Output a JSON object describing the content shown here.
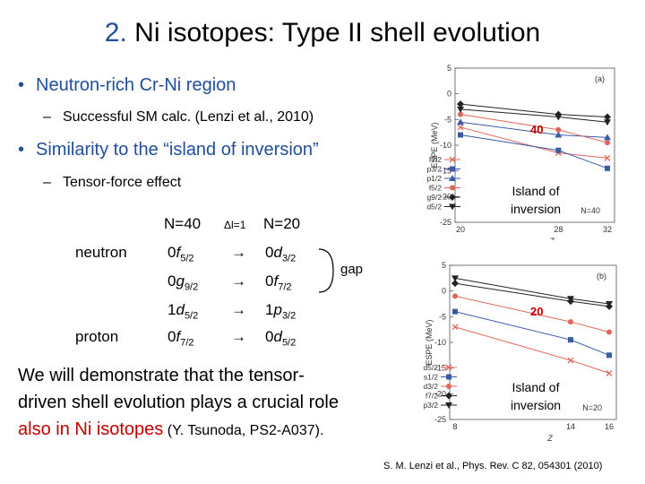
{
  "title": {
    "number": "2.",
    "text": " Ni isotopes: Type II shell evolution"
  },
  "bullets": [
    {
      "text": "Neutron-rich Cr-Ni region",
      "sub": "Successful SM calc. (Lenzi et al., 2010)"
    },
    {
      "text": "Similarity to the “island of inversion”",
      "sub": "Tensor-force effect"
    }
  ],
  "table": {
    "header_n40": "N=40",
    "header_dl": "Δl=1",
    "header_n20": "N=20",
    "row_neutron": "neutron",
    "row_proton": "proton",
    "arrow": "→",
    "gap": "gap",
    "left": [
      {
        "n": "0",
        "l": "f",
        "j": "5/2"
      },
      {
        "n": "0",
        "l": "g",
        "j": "9/2"
      },
      {
        "n": "1",
        "l": "d",
        "j": "5/2"
      },
      {
        "n": "0",
        "l": "f",
        "j": "7/2"
      }
    ],
    "right": [
      {
        "n": "0",
        "l": "d",
        "j": "3/2"
      },
      {
        "n": "0",
        "l": "f",
        "j": "7/2"
      },
      {
        "n": "1",
        "l": "p",
        "j": "3/2"
      },
      {
        "n": "0",
        "l": "d",
        "j": "5/2"
      }
    ]
  },
  "conclusion": {
    "line1": "We will demonstrate that the tensor-",
    "line2": "driven shell evolution plays a crucial role",
    "red": "also in Ni isotopes",
    "cite": " (Y. Tsunoda, PS2-A037)."
  },
  "annotations": {
    "top_magic": "40",
    "bottom_magic": "20",
    "island_line1": "Island of",
    "island_line2": "inversion"
  },
  "reference": "S. M. Lenzi et al., Phys. Rev. C 82, 054301 (2010)",
  "colors": {
    "title_blue": "#1f4e9a",
    "accent_red": "#c00000"
  },
  "chart_data": [
    {
      "type": "line",
      "panel": "(a)",
      "ylabel": "ESPE (MeV)",
      "xlabel": "Z",
      "xticks": [
        "20",
        "28",
        "32"
      ],
      "yticks": [
        "5",
        "0",
        "-5",
        "-10",
        "-15",
        "-20",
        "-25"
      ],
      "ylim": [
        -25,
        5
      ],
      "x": [
        20,
        28,
        32
      ],
      "inset_label": "N=40",
      "legend": [
        "f7/2",
        "p3/2",
        "p1/2",
        "f5/2",
        "g9/2",
        "d5/2"
      ],
      "series": [
        {
          "name": "f7/2",
          "marker": "x",
          "color": "#e0665a",
          "values": [
            -6.5,
            -11.5,
            -12.5
          ]
        },
        {
          "name": "p3/2",
          "marker": "square",
          "color": "#3a5ba8",
          "values": [
            -8.0,
            -11.0,
            -14.5
          ]
        },
        {
          "name": "p1/2",
          "marker": "triangle",
          "color": "#3a5ba8",
          "values": [
            -5.5,
            -8.0,
            -8.5
          ]
        },
        {
          "name": "f5/2",
          "marker": "circle",
          "color": "#e0665a",
          "values": [
            -4.0,
            -7.0,
            -9.5
          ]
        },
        {
          "name": "g9/2",
          "marker": "diamond",
          "color": "#222222",
          "values": [
            -2.0,
            -4.0,
            -4.5
          ]
        },
        {
          "name": "d5/2",
          "marker": "triangle-down",
          "color": "#222222",
          "values": [
            -3.0,
            -4.5,
            -5.5
          ]
        }
      ]
    },
    {
      "type": "line",
      "panel": "(b)",
      "ylabel": "ESPE (MeV)",
      "xlabel": "Z",
      "xticks": [
        "8",
        "14",
        "16"
      ],
      "yticks": [
        "5",
        "0",
        "-5",
        "-10",
        "-15",
        "-20",
        "-25"
      ],
      "ylim": [
        -25,
        5
      ],
      "x": [
        8,
        14,
        16
      ],
      "inset_label": "N=20",
      "legend": [
        "d5/2",
        "s1/2",
        "d3/2",
        "f7/2",
        "p3/2"
      ],
      "series": [
        {
          "name": "d5/2",
          "marker": "x",
          "color": "#e0665a",
          "values": [
            -7.0,
            -13.5,
            -16.0
          ]
        },
        {
          "name": "s1/2",
          "marker": "square",
          "color": "#3a5ba8",
          "values": [
            -4.0,
            -9.5,
            -12.5
          ]
        },
        {
          "name": "d3/2",
          "marker": "circle",
          "color": "#e0665a",
          "values": [
            -1.0,
            -6.0,
            -8.0
          ]
        },
        {
          "name": "f7/2",
          "marker": "diamond",
          "color": "#222222",
          "values": [
            1.5,
            -2.0,
            -3.0
          ]
        },
        {
          "name": "p3/2",
          "marker": "triangle-down",
          "color": "#222222",
          "values": [
            2.5,
            -1.5,
            -2.5
          ]
        }
      ]
    }
  ]
}
